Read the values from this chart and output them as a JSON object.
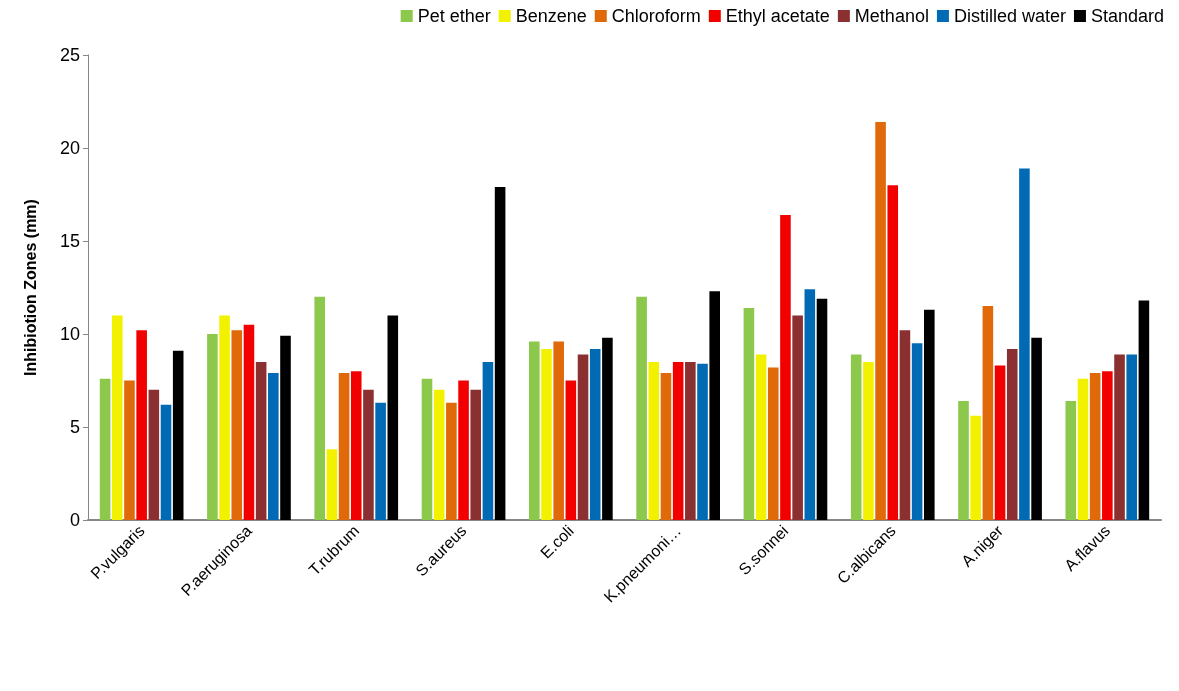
{
  "chart_data": {
    "type": "bar",
    "ylabel": "Inhibiotion Zones (mm)",
    "categories": [
      "P.vulgaris",
      "P.aeruginosa",
      "T.rubrum",
      "S.aureus",
      "E.coli",
      "K.pneumoni…",
      "S.sonnei",
      "C.albicans",
      "A.niger",
      "A.flavus"
    ],
    "series": [
      {
        "name": "Pet ether",
        "color": "#8cc84b",
        "values": [
          7.6,
          10,
          12,
          7.6,
          9.6,
          12,
          11.4,
          8.9,
          6.4,
          6.4
        ]
      },
      {
        "name": "Benzene",
        "color": "#f2f200",
        "values": [
          11,
          11,
          3.8,
          7,
          9.2,
          8.5,
          8.9,
          8.5,
          5.6,
          7.6
        ]
      },
      {
        "name": "Chloroform",
        "color": "#e06a0a",
        "values": [
          7.5,
          10.2,
          7.9,
          6.3,
          9.6,
          7.9,
          8.2,
          21.4,
          11.5,
          7.9
        ]
      },
      {
        "name": "Ethyl acetate",
        "color": "#f20000",
        "values": [
          10.2,
          10.5,
          8,
          7.5,
          7.5,
          8.5,
          16.4,
          18,
          8.3,
          8
        ]
      },
      {
        "name": "Methanol",
        "color": "#8b3030",
        "values": [
          7,
          8.5,
          7,
          7,
          8.9,
          8.5,
          11,
          10.2,
          9.2,
          8.9
        ]
      },
      {
        "name": "Distilled water",
        "color": "#006ab4",
        "values": [
          6.2,
          7.9,
          6.3,
          8.5,
          9.2,
          8.4,
          12.4,
          9.5,
          18.9,
          8.9
        ]
      },
      {
        "name": "Standard",
        "color": "#000000",
        "values": [
          9.1,
          9.9,
          11,
          17.9,
          9.8,
          12.3,
          11.9,
          11.3,
          9.8,
          11.8
        ]
      }
    ],
    "ylim": [
      0,
      25
    ],
    "yticks": [
      0,
      5,
      10,
      15,
      20,
      25
    ],
    "grid": false,
    "legend": "top right"
  }
}
